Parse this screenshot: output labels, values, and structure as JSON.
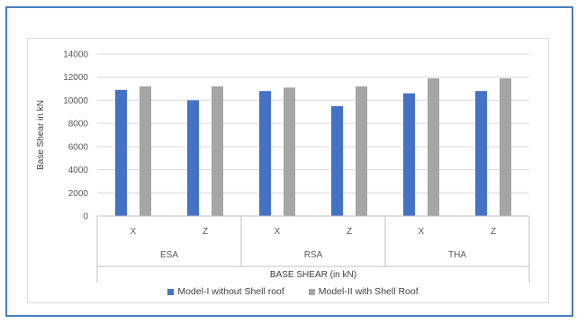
{
  "chart_data": {
    "type": "bar",
    "title": "",
    "xlabel": "BASE SHEAR (in kN)",
    "ylabel": "Base Shear in kN",
    "ylim": [
      0,
      14000
    ],
    "yticks": [
      "0",
      "2000",
      "4000",
      "6000",
      "8000",
      "10000",
      "12000",
      "14000"
    ],
    "grid": true,
    "legend_position": "bottom",
    "groups": [
      {
        "label": "ESA",
        "categories": [
          "X",
          "Z"
        ]
      },
      {
        "label": "RSA",
        "categories": [
          "X",
          "Z"
        ]
      },
      {
        "label": "THA",
        "categories": [
          "X",
          "Z"
        ]
      }
    ],
    "series": [
      {
        "name": "Model-I without Shell roof",
        "color": "#4472c4",
        "values": [
          10900,
          10000,
          10800,
          9500,
          10600,
          10800
        ]
      },
      {
        "name": "Model-II with Shell Roof",
        "color": "#a5a5a5",
        "values": [
          11200,
          11200,
          11100,
          11200,
          11900,
          11900
        ]
      }
    ]
  }
}
